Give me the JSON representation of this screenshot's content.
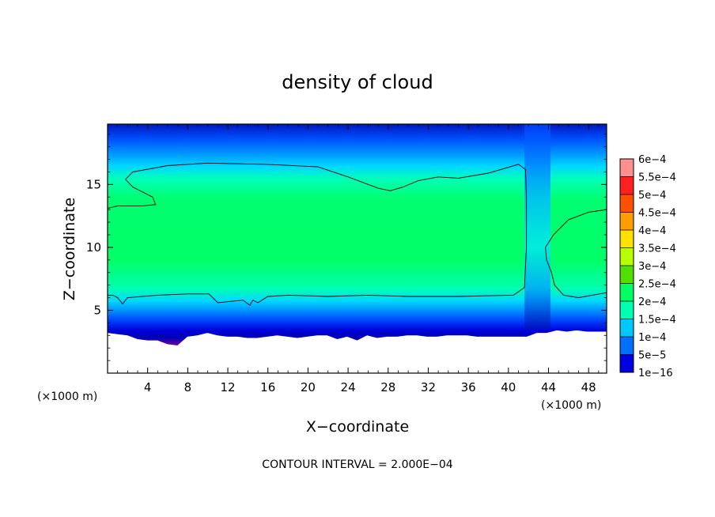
{
  "chart_data": {
    "type": "heatmap",
    "title": "density of cloud",
    "xlabel": "X−coordinate",
    "ylabel": "Z−coordinate",
    "x_unit_left": "(×1000 m)",
    "x_unit_right": "(×1000 m)",
    "xlim": [
      0,
      49.8
    ],
    "ylim": [
      0,
      19.8
    ],
    "x_ticks": [
      4,
      8,
      12,
      16,
      20,
      24,
      28,
      32,
      36,
      40,
      44,
      48
    ],
    "y_ticks": [
      5,
      10,
      15
    ],
    "footer": "CONTOUR INTERVAL = 2.000E−04",
    "colorbar": {
      "labels": [
        "6e−4",
        "5.5e−4",
        "5e−4",
        "4.5e−4",
        "4e−4",
        "3.5e−4",
        "3e−4",
        "2.5e−4",
        "2e−4",
        "1.5e−4",
        "1e−4",
        "5e−5",
        "1e−16"
      ],
      "colors": [
        "#ff9090",
        "#ff2020",
        "#ff5000",
        "#ff9c00",
        "#ffe000",
        "#b8ff00",
        "#50e000",
        "#00ff60",
        "#00ffb0",
        "#00c8ff",
        "#0070ff",
        "#0000e0",
        "#6a00b0"
      ]
    },
    "cloud_field": {
      "base_z": [
        3.2,
        3.1,
        3.0,
        2.7,
        2.6,
        2.6,
        2.3,
        2.2,
        2.9,
        3.0,
        3.2,
        3.0,
        2.9,
        2.9,
        2.8,
        2.8,
        2.9,
        3.0,
        2.9,
        2.8,
        2.9,
        3.0,
        3.0,
        2.7,
        2.9,
        2.6,
        3.0,
        2.8,
        2.9,
        2.9,
        3.0,
        3.0,
        2.9,
        2.9,
        3.0,
        3.0,
        3.0,
        2.9,
        2.9,
        2.9,
        2.9,
        2.9,
        2.9,
        3.2,
        3.2,
        3.4,
        3.3,
        3.4,
        3.3,
        3.3,
        3.3
      ],
      "contour_2e-4": [
        [
          [
            0,
            13.1
          ],
          [
            1,
            13.3
          ],
          [
            3.5,
            13.3
          ],
          [
            4.8,
            13.4
          ],
          [
            4.5,
            14.0
          ],
          [
            2.5,
            14.8
          ],
          [
            1.8,
            15.4
          ],
          [
            2.5,
            16.0
          ],
          [
            6,
            16.5
          ],
          [
            10,
            16.7
          ],
          [
            16,
            16.6
          ],
          [
            21,
            16.4
          ],
          [
            24,
            15.6
          ],
          [
            27,
            14.7
          ],
          [
            28.2,
            14.5
          ],
          [
            29.5,
            14.8
          ],
          [
            31,
            15.3
          ],
          [
            33,
            15.6
          ],
          [
            35,
            15.5
          ],
          [
            38,
            15.9
          ],
          [
            41,
            16.6
          ],
          [
            41.7,
            16.2
          ],
          [
            41.8,
            14
          ],
          [
            41.8,
            10
          ],
          [
            41.6,
            6.8
          ],
          [
            40.5,
            6.2
          ],
          [
            35,
            6.1
          ],
          [
            30,
            6.1
          ],
          [
            26,
            6.2
          ],
          [
            22,
            6.1
          ],
          [
            18,
            6.2
          ],
          [
            16,
            6.1
          ],
          [
            15,
            5.6
          ],
          [
            14.5,
            5.8
          ],
          [
            14.2,
            5.4
          ],
          [
            13.5,
            5.8
          ],
          [
            11,
            5.6
          ],
          [
            10.1,
            6.3
          ],
          [
            8,
            6.3
          ],
          [
            5,
            6.2
          ],
          [
            2,
            6.0
          ],
          [
            1.5,
            5.5
          ],
          [
            1.0,
            6.0
          ],
          [
            0.5,
            6.2
          ],
          [
            0,
            6.2
          ]
        ],
        [
          [
            49.8,
            13.0
          ],
          [
            48,
            12.8
          ],
          [
            46,
            12.2
          ],
          [
            44.5,
            11.0
          ],
          [
            43.7,
            10.0
          ],
          [
            43.8,
            9.0
          ],
          [
            44.3,
            8.0
          ],
          [
            44.6,
            7.0
          ],
          [
            45.5,
            6.2
          ],
          [
            47,
            6.0
          ],
          [
            49.8,
            6.4
          ]
        ]
      ]
    }
  }
}
